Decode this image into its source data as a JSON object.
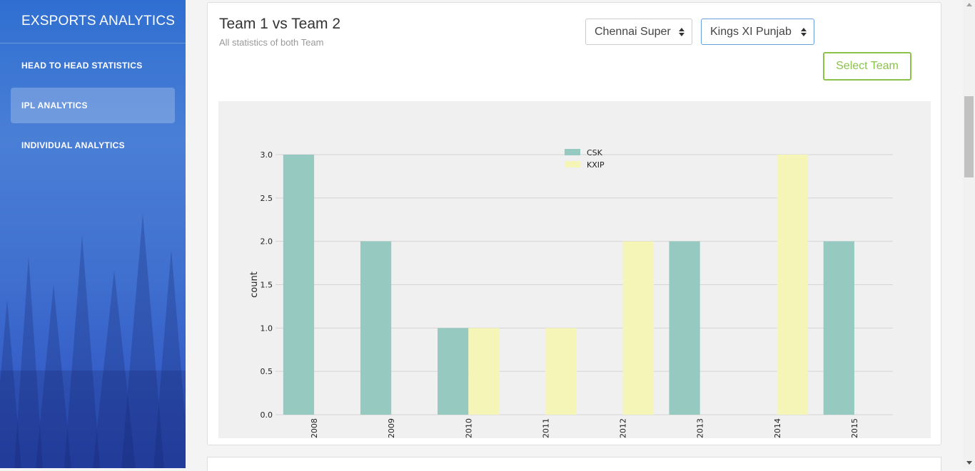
{
  "sidebar": {
    "brand": "EXSPORTS ANALYTICS",
    "items": [
      {
        "label": "HEAD TO HEAD STATISTICS",
        "active": false
      },
      {
        "label": "IPL ANALYTICS",
        "active": true
      },
      {
        "label": "INDIVIDUAL ANALYTICS",
        "active": false
      }
    ]
  },
  "card": {
    "title": "Team 1 vs Team 2",
    "subtitle": "All statistics of both Team",
    "team1_select": "Chennai Super",
    "team2_select": "Kings XI Punjab",
    "select_button": "Select Team"
  },
  "colors": {
    "csk": "#96cac0",
    "kxip": "#f5f5b8",
    "accent": "#8bc34a"
  },
  "chart_data": {
    "type": "bar",
    "categories": [
      "2008",
      "2009",
      "2010",
      "2011",
      "2012",
      "2013",
      "2014",
      "2015"
    ],
    "series": [
      {
        "name": "CSK",
        "values": [
          3,
          2,
          1,
          0,
          0,
          2,
          0,
          2
        ]
      },
      {
        "name": "KXIP",
        "values": [
          0,
          0,
          1,
          1,
          2,
          0,
          3,
          0
        ]
      }
    ],
    "ylabel": "count",
    "yticks": [
      "0.0",
      "0.5",
      "1.0",
      "1.5",
      "2.0",
      "2.5",
      "3.0"
    ],
    "ylim": [
      0,
      3
    ],
    "grid": true,
    "legend": "top-center"
  }
}
